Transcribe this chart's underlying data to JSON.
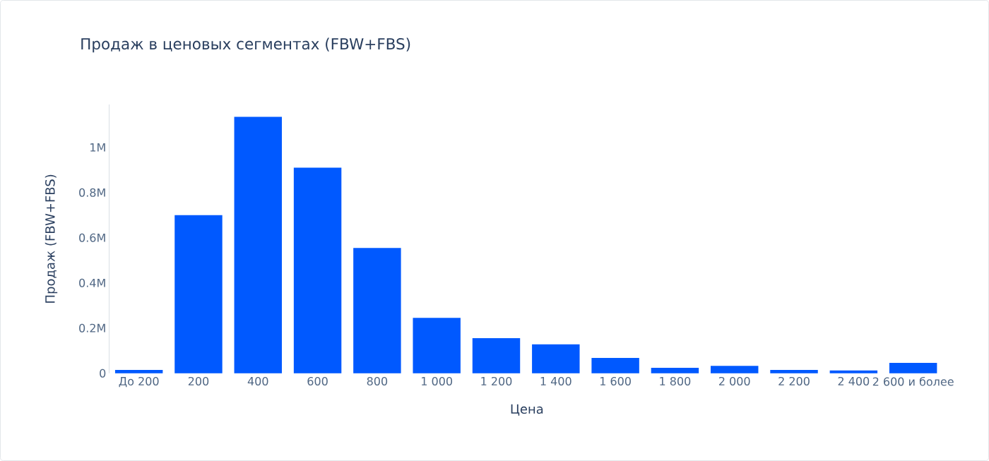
{
  "chart_data": {
    "type": "bar",
    "title": "Продаж в ценовых сегментах (FBW+FBS)",
    "xlabel": "Цена",
    "ylabel": "Продаж (FBW+FBS)",
    "categories": [
      "До 200",
      "200",
      "400",
      "600",
      "800",
      "1 000",
      "1 200",
      "1 400",
      "1 600",
      "1 800",
      "2 000",
      "2 200",
      "2 400",
      "2 600 и более"
    ],
    "values": [
      15000,
      700000,
      1135000,
      910000,
      555000,
      245000,
      155000,
      128000,
      68000,
      24000,
      33000,
      15000,
      12000,
      46000
    ],
    "color": "#0059ff",
    "ylim": [
      0,
      1190000
    ],
    "yticks": [
      0,
      {
        "value": 200000,
        "label": "0.2M"
      },
      {
        "value": 400000,
        "label": "0.4M"
      },
      {
        "value": 600000,
        "label": "0.6M"
      },
      {
        "value": 800000,
        "label": "0.8M"
      },
      {
        "value": 1000000,
        "label": "1M"
      }
    ]
  }
}
